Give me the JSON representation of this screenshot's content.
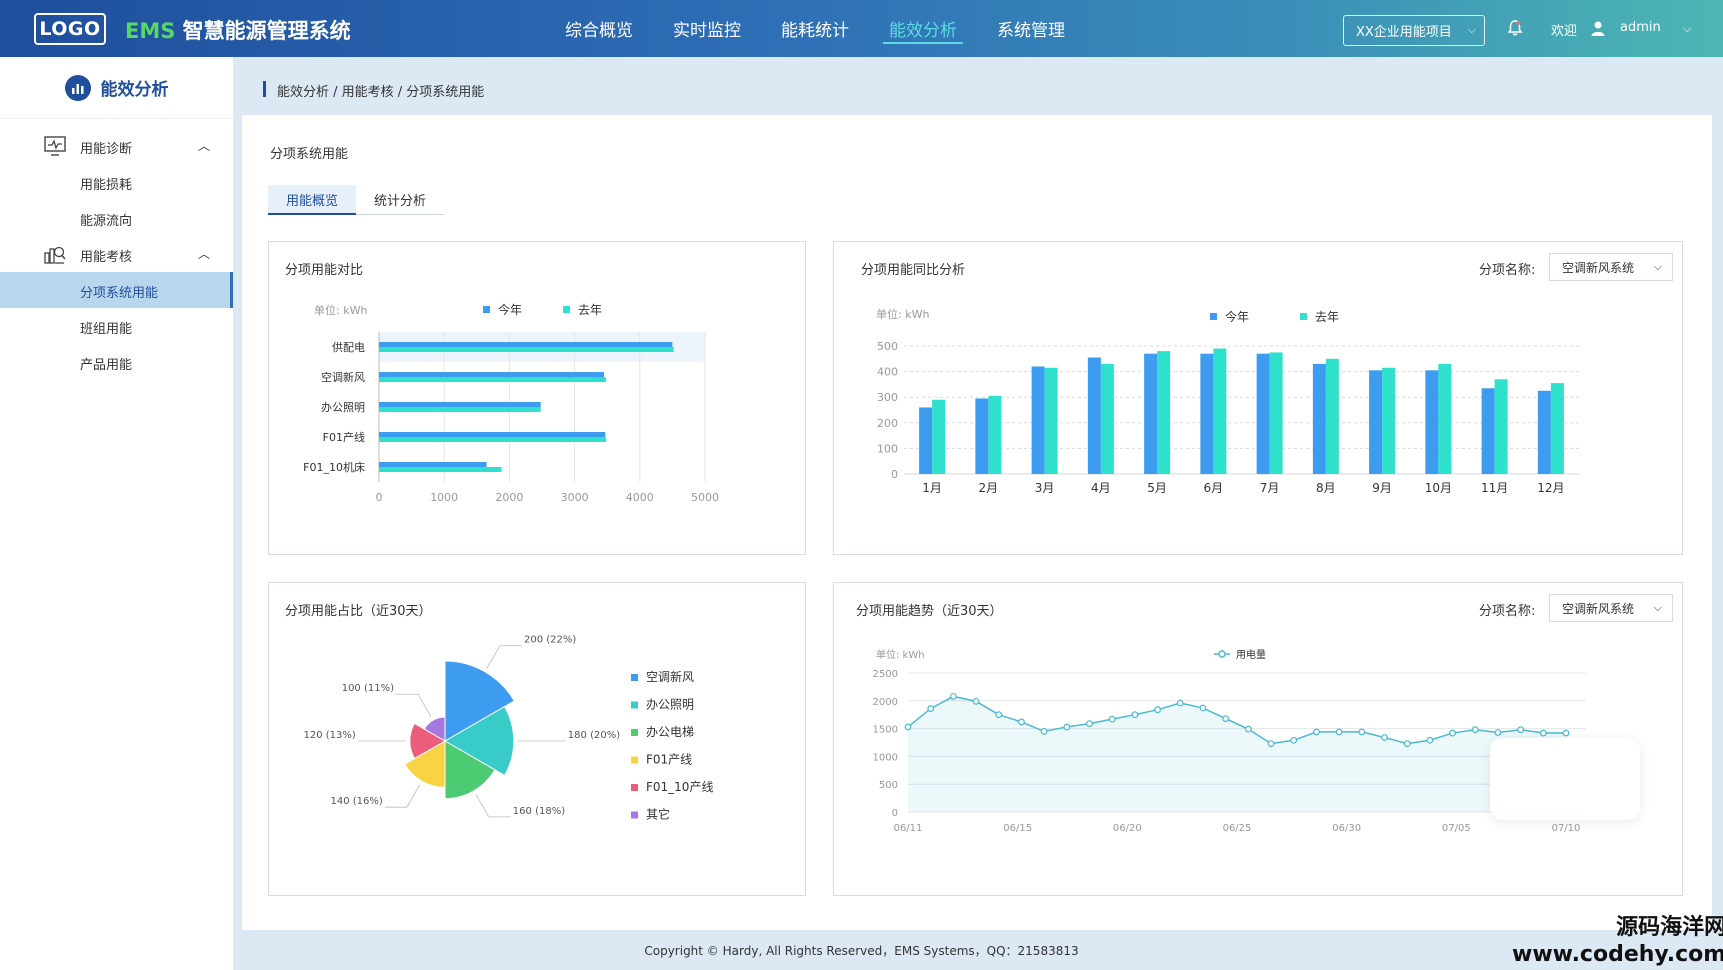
{
  "header": {
    "logo": "LOGO",
    "title_prefix": "EMS",
    "title": " 智慧能源管理系统",
    "nav": [
      "综合概览",
      "实时监控",
      "能耗统计",
      "能效分析",
      "系统管理"
    ],
    "active_nav": 3,
    "project_select": "XX企业用能项目",
    "welcome": "欢迎",
    "username": "admin"
  },
  "sidebar": {
    "title": "能效分析",
    "groups": [
      {
        "label": "用能诊断",
        "icon": "monitor-icon",
        "items": [
          "用能损耗",
          "能源流向"
        ]
      },
      {
        "label": "用能考核",
        "icon": "building-chart-icon",
        "items": [
          "分项系统用能",
          "班组用能",
          "产品用能"
        ]
      }
    ],
    "active_item": "分项系统用能"
  },
  "breadcrumb": "能效分析 / 用能考核 / 分项系统用能",
  "page": {
    "title": "分项系统用能",
    "tabs": [
      "用能概览",
      "统计分析"
    ],
    "active_tab": 0
  },
  "colors": {
    "this_year": "#3d9cf0",
    "last_year": "#2fe0cc",
    "line": "#49b9d2"
  },
  "panels": {
    "bar_compare": {
      "title": "分项用能对比"
    },
    "yoy": {
      "title": "分项用能同比分析",
      "filter_label": "分项名称:",
      "filter_value": "空调新风系统"
    },
    "pie": {
      "title": "分项用能占比（近30天）"
    },
    "trend": {
      "title": "分项用能趋势（近30天）",
      "filter_label": "分项名称:",
      "filter_value": "空调新风系统"
    }
  },
  "chart_data": [
    {
      "type": "bar",
      "orientation": "horizontal",
      "unit_label": "单位: kWh",
      "categories": [
        "供配电",
        "空调新风",
        "办公照明",
        "F01产线",
        "F01_10机床"
      ],
      "series": [
        {
          "name": "今年",
          "values": [
            4500,
            3450,
            2480,
            3470,
            1650
          ]
        },
        {
          "name": "去年",
          "values": [
            4520,
            3480,
            2480,
            3480,
            1880
          ]
        }
      ],
      "xlim": [
        0,
        5000
      ],
      "xticks": [
        "0",
        "1000",
        "2000",
        "3000",
        "4000",
        "5000"
      ],
      "legend": "top"
    },
    {
      "type": "bar",
      "unit_label": "单位: kWh",
      "categories": [
        "1月",
        "2月",
        "3月",
        "4月",
        "5月",
        "6月",
        "7月",
        "8月",
        "9月",
        "10月",
        "11月",
        "12月"
      ],
      "series": [
        {
          "name": "今年",
          "values": [
            260,
            295,
            420,
            455,
            470,
            470,
            470,
            430,
            405,
            405,
            335,
            325
          ]
        },
        {
          "name": "去年",
          "values": [
            290,
            305,
            415,
            430,
            480,
            490,
            475,
            450,
            415,
            430,
            370,
            355
          ]
        }
      ],
      "ylim": [
        0,
        500
      ],
      "yticks": [
        "0",
        "100",
        "200",
        "300",
        "400",
        "500"
      ],
      "legend": "top"
    },
    {
      "type": "pie",
      "rose": true,
      "slices": [
        {
          "name": "空调新风",
          "value": 200,
          "label": "200 (22%)",
          "color": "#3d9cf0"
        },
        {
          "name": "办公照明",
          "value": 180,
          "label": "180 (20%)",
          "color": "#38cbc8"
        },
        {
          "name": "办公电梯",
          "value": 160,
          "label": "160 (18%)",
          "color": "#4ccb72"
        },
        {
          "name": "F01产线",
          "value": 140,
          "label": "140 (16%)",
          "color": "#f8d343"
        },
        {
          "name": "F01_10产线",
          "value": 120,
          "label": "120 (13%)",
          "color": "#ec5d7c"
        },
        {
          "name": "其它",
          "value": 100,
          "label": "100 (11%)",
          "color": "#a679e0"
        }
      ],
      "legend": "right"
    },
    {
      "type": "area",
      "unit_label": "单位: kWh",
      "series": [
        {
          "name": "用电量",
          "values": [
            1530,
            1860,
            2080,
            1990,
            1750,
            1620,
            1450,
            1530,
            1590,
            1670,
            1750,
            1840,
            1960,
            1870,
            1680,
            1490,
            1230,
            1290,
            1440,
            1440,
            1440,
            1340,
            1230,
            1290,
            1420,
            1480,
            1430,
            1480,
            1420,
            1420
          ]
        }
      ],
      "ylim": [
        0,
        2500
      ],
      "yticks": [
        "0",
        "500",
        "1000",
        "1500",
        "2000",
        "2500"
      ],
      "xticks": [
        "06/11",
        "06/15",
        "06/20",
        "06/25",
        "06/30",
        "07/05",
        "07/10"
      ],
      "legend": "top"
    }
  ],
  "footer": "Copyright © Hardy, All Rights Reserved，EMS Systems，QQ：21583813",
  "watermark": [
    "源码海洋网",
    "www.codehy.com"
  ]
}
